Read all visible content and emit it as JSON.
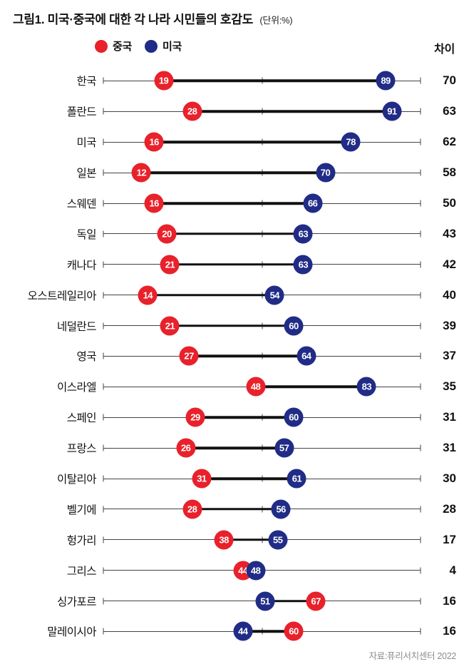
{
  "title": "그림1. 미국·중국에 대한 각 나라 시민들의 호감도",
  "unit": "(단위:%)",
  "legend": {
    "china_label": "중국",
    "us_label": "미국"
  },
  "diff_header": "차이",
  "source": "자료:퓨리서치센터 2022",
  "colors": {
    "china": "#e8212b",
    "us": "#202c86",
    "connector": "#111111",
    "axis": "#444444"
  },
  "chart_data": {
    "type": "dumbbell",
    "xlim": [
      0,
      100
    ],
    "tick_positions": [
      0,
      50,
      100
    ],
    "series_names": [
      "중국",
      "미국"
    ],
    "value_unit": "%",
    "rows": [
      {
        "country": "한국",
        "china": 19,
        "us": 89,
        "diff": 70
      },
      {
        "country": "폴란드",
        "china": 28,
        "us": 91,
        "diff": 63
      },
      {
        "country": "미국",
        "china": 16,
        "us": 78,
        "diff": 62
      },
      {
        "country": "일본",
        "china": 12,
        "us": 70,
        "diff": 58
      },
      {
        "country": "스웨덴",
        "china": 16,
        "us": 66,
        "diff": 50
      },
      {
        "country": "독일",
        "china": 20,
        "us": 63,
        "diff": 43
      },
      {
        "country": "캐나다",
        "china": 21,
        "us": 63,
        "diff": 42
      },
      {
        "country": "오스트레일리아",
        "china": 14,
        "us": 54,
        "diff": 40
      },
      {
        "country": "네덜란드",
        "china": 21,
        "us": 60,
        "diff": 39
      },
      {
        "country": "영국",
        "china": 27,
        "us": 64,
        "diff": 37
      },
      {
        "country": "이스라엘",
        "china": 48,
        "us": 83,
        "diff": 35
      },
      {
        "country": "스페인",
        "china": 29,
        "us": 60,
        "diff": 31
      },
      {
        "country": "프랑스",
        "china": 26,
        "us": 57,
        "diff": 31
      },
      {
        "country": "이탈리아",
        "china": 31,
        "us": 61,
        "diff": 30
      },
      {
        "country": "벨기에",
        "china": 28,
        "us": 56,
        "diff": 28
      },
      {
        "country": "헝가리",
        "china": 38,
        "us": 55,
        "diff": 17
      },
      {
        "country": "그리스",
        "china": 44,
        "us": 48,
        "diff": 4
      },
      {
        "country": "싱가포르",
        "china": 67,
        "us": 51,
        "diff": 16
      },
      {
        "country": "말레이시아",
        "china": 60,
        "us": 44,
        "diff": 16
      }
    ]
  }
}
